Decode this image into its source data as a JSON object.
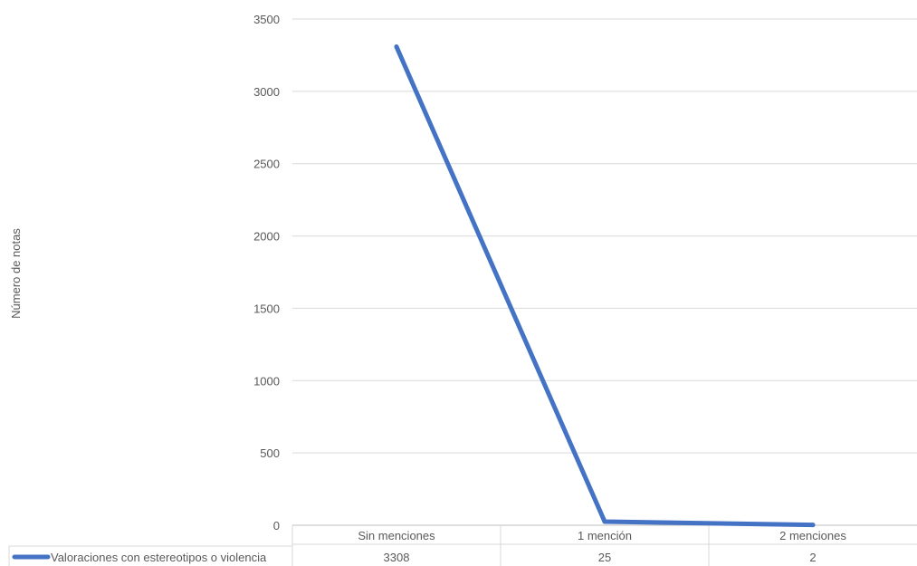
{
  "chart_data": {
    "type": "line",
    "ylabel": "Número de notas",
    "categories": [
      "Sin menciones",
      "1 mención",
      "2 menciones"
    ],
    "series": [
      {
        "name": "Valoraciones con estereotipos o violencia",
        "values": [
          3308,
          25,
          2
        ],
        "color": "#4472C4"
      }
    ],
    "ylim": [
      0,
      3500
    ],
    "yticks": [
      0,
      500,
      1000,
      1500,
      2000,
      2500,
      3000,
      3500
    ],
    "grid": true,
    "legend": "data-table-bottom-left"
  }
}
